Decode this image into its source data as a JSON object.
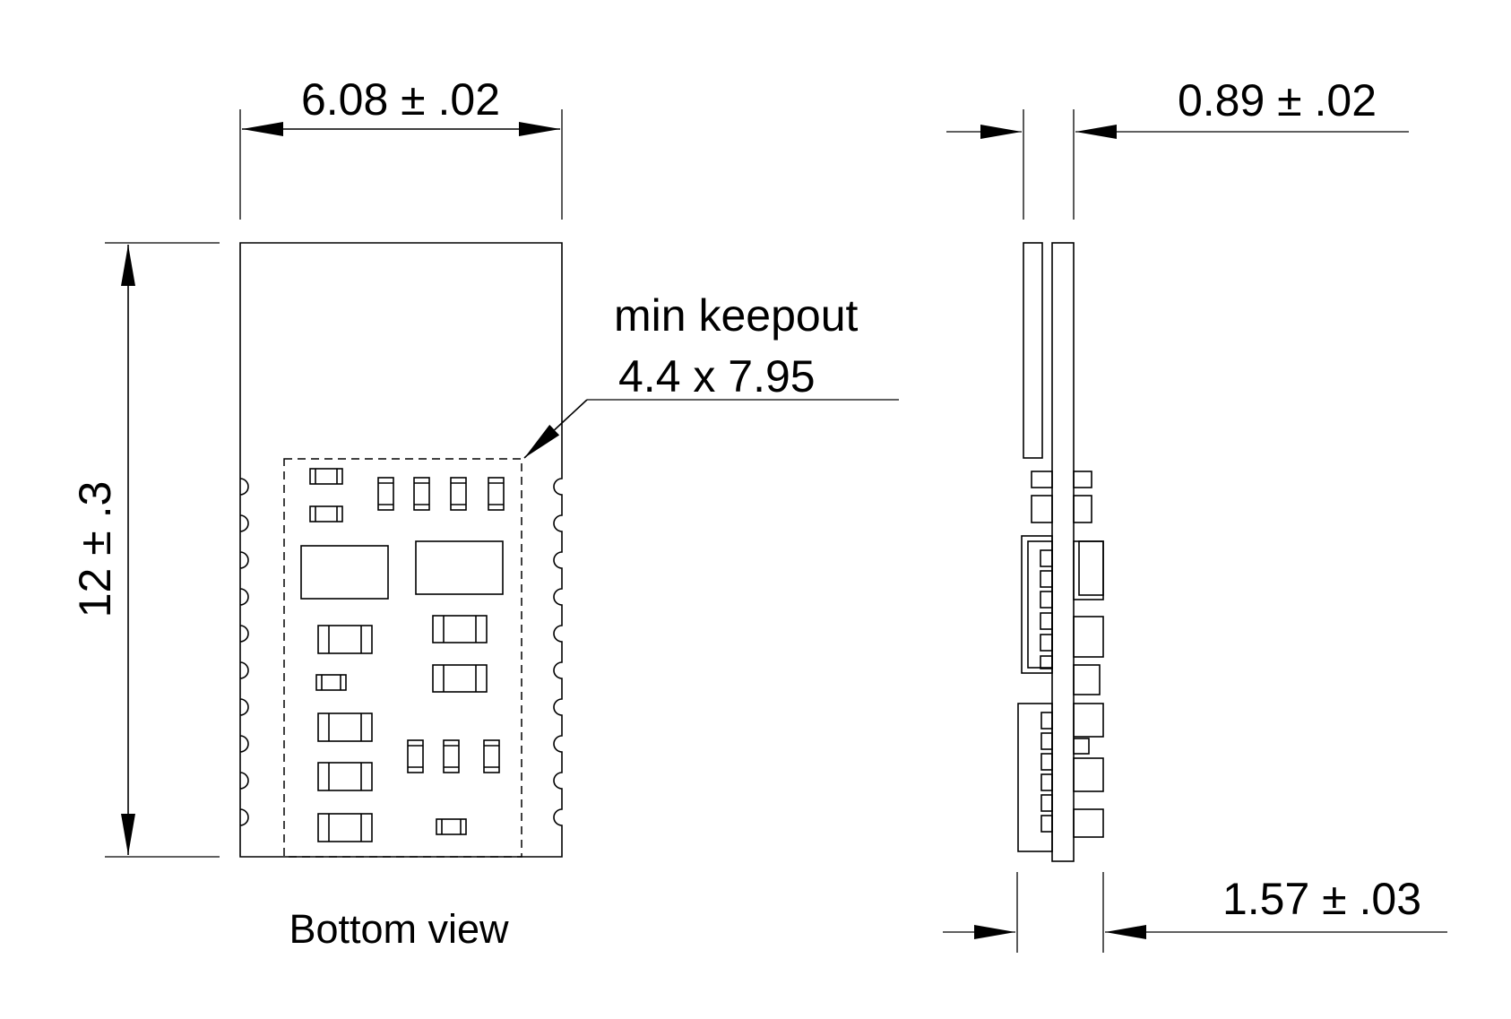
{
  "dimensions": {
    "width": "6.08 ± .02",
    "height": "12 ± .3",
    "keepout_line1": "min keepout",
    "keepout_line2": "4.4 x 7.95",
    "pcb_thickness": "0.89 ± .02",
    "total_thickness": "1.57 ± .03"
  },
  "labels": {
    "bottom_view": "Bottom view"
  }
}
